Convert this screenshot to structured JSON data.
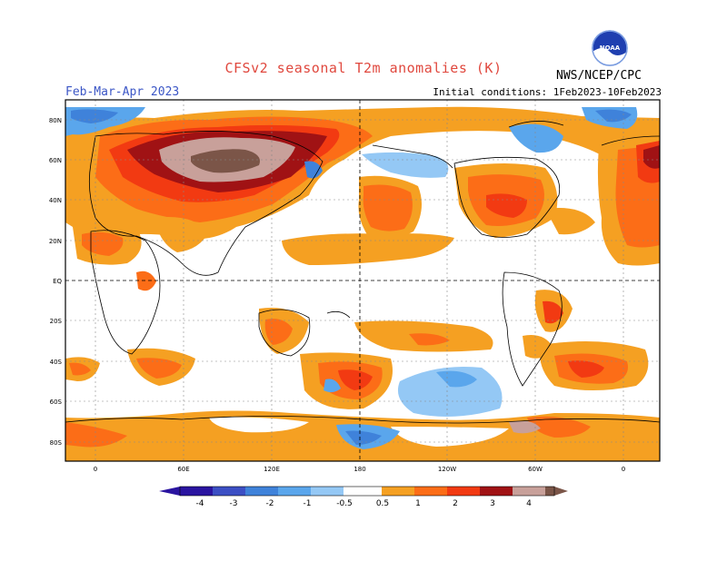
{
  "header": {
    "title": "CFSv2 seasonal T2m anomalies (K)",
    "season": "Feb-Mar-Apr 2023",
    "initial_conditions": "Initial conditions: 1Feb2023-10Feb2023",
    "organization": "NWS/NCEP/CPC",
    "logo_text": "NOAA"
  },
  "map": {
    "lat_labels": [
      "80N",
      "60N",
      "40N",
      "20N",
      "EQ",
      "20S",
      "40S",
      "60S",
      "80S"
    ],
    "lon_labels": [
      "0",
      "60E",
      "120E",
      "180",
      "120W",
      "60W",
      "0"
    ],
    "colors": {
      "neg4": "#2a14a0",
      "neg3": "#3c4fc4",
      "neg2": "#3f82da",
      "neg1": "#5aa6ec",
      "neg05": "#94c8f5",
      "pos05": "#f5a022",
      "pos1": "#fc6d17",
      "pos2": "#f23a12",
      "pos3": "#a01214",
      "pos4": "#c8a09a",
      "pos5": "#7b5548"
    }
  },
  "legend": {
    "labels": [
      "-4",
      "-3",
      "-2",
      "-1",
      "-0.5",
      "0.5",
      "1",
      "2",
      "3",
      "4"
    ]
  }
}
